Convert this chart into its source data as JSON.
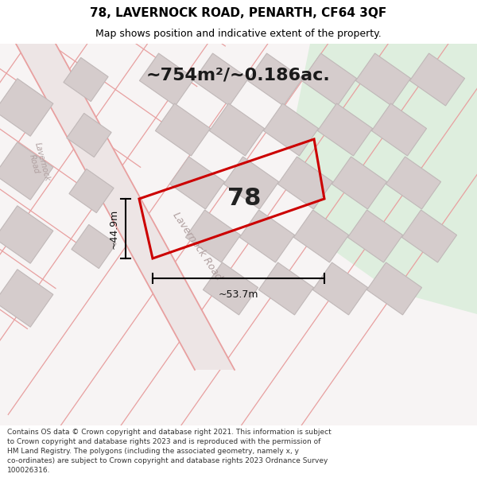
{
  "title": "78, LAVERNOCK ROAD, PENARTH, CF64 3QF",
  "subtitle": "Map shows position and indicative extent of the property.",
  "footer": "Contains OS data © Crown copyright and database right 2021. This information is subject to Crown copyright and database rights 2023 and is reproduced with the permission of HM Land Registry. The polygons (including the associated geometry, namely x, y co-ordinates) are subject to Crown copyright and database rights 2023 Ordnance Survey 100026316.",
  "area_text": "~754m²/~0.186ac.",
  "dim_width": "~53.7m",
  "dim_height": "~44.9m",
  "property_label": "78",
  "map_bg": "#f7f4f4",
  "road_line_color": "#e8a0a0",
  "road_fill_color": "#f0e8e8",
  "block_color": "#d5cccc",
  "block_outline": "#c0b8b8",
  "green_area": "#deeede",
  "property_outline": "#cc0000",
  "dim_color": "#111111",
  "road_label_color": "#b0a0a0",
  "title_color": "#000000",
  "footer_color": "#333333",
  "title_fontsize": 11,
  "subtitle_fontsize": 9,
  "footer_fontsize": 6.5,
  "area_fontsize": 16,
  "label_fontsize": 22,
  "dim_fontsize": 9
}
